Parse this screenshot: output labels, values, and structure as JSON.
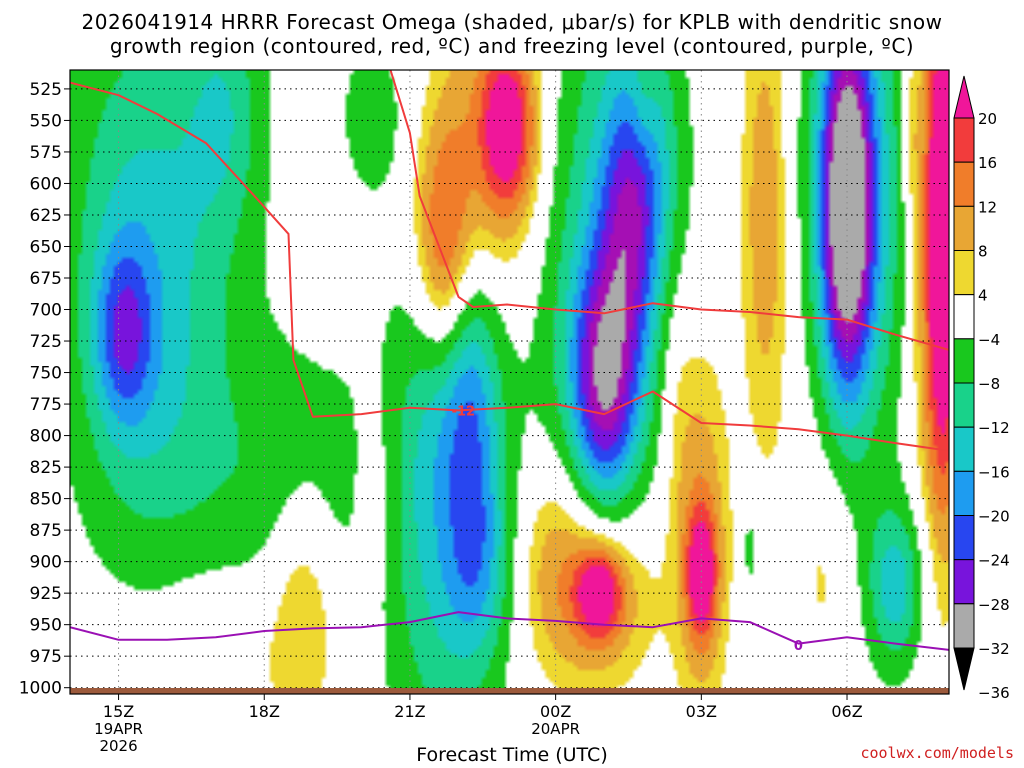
{
  "title_line1": "2026041914 HRRR Forecast Omega (shaded, μbar/s) for KPLB with dendritic snow",
  "title_line2": "growth region (contoured, red, ºC) and freezing level (contoured, purple, ºC)",
  "credit": "coolwx.com/models",
  "chart_data": {
    "type": "heatmap",
    "title": "2026041914 HRRR Forecast Omega (shaded, μbar/s) for KPLB with dendritic snow growth region (contoured, red, ºC) and freezing level (contoured, purple, ºC)",
    "xlabel": "Forecast Time (UTC)",
    "ylabel": "",
    "x_range_hours_utc": [
      14,
      32.1
    ],
    "y_levels_hpa": [
      525,
      550,
      575,
      600,
      625,
      650,
      675,
      700,
      725,
      750,
      775,
      800,
      825,
      850,
      875,
      900,
      925,
      950,
      975,
      1000
    ],
    "ylim_hpa": [
      1005,
      510
    ],
    "x_ticks": [
      {
        "hour": 15,
        "label": "15Z",
        "sub1": "19APR",
        "sub2": "2026"
      },
      {
        "hour": 18,
        "label": "18Z",
        "sub1": "",
        "sub2": ""
      },
      {
        "hour": 21,
        "label": "21Z",
        "sub1": "",
        "sub2": ""
      },
      {
        "hour": 24,
        "label": "00Z",
        "sub1": "20APR",
        "sub2": ""
      },
      {
        "hour": 27,
        "label": "03Z",
        "sub1": "",
        "sub2": ""
      },
      {
        "hour": 30,
        "label": "06Z",
        "sub1": "",
        "sub2": ""
      }
    ],
    "colorbar": {
      "labels": [
        "20",
        "16",
        "12",
        "8",
        "4",
        "−4",
        "−8",
        "−12",
        "−16",
        "−20",
        "−24",
        "−28",
        "−32",
        "−36"
      ],
      "colors": [
        "#f0169a",
        "#f23c3c",
        "#f07d2a",
        "#e8a634",
        "#eed830",
        "#ffffff",
        "#19c81e",
        "#19d28a",
        "#19c8c8",
        "#1e9cf0",
        "#2846f0",
        "#7814dc",
        "#a50fb4",
        "#aaaaaa"
      ]
    },
    "omega_features": [
      {
        "hour": 15.5,
        "hpa": 620,
        "wx": 1.4,
        "wy": 160,
        "value": -11
      },
      {
        "hour": 15.1,
        "hpa": 720,
        "wx": 0.5,
        "wy": 60,
        "value": -14
      },
      {
        "hour": 15.8,
        "hpa": 800,
        "wx": 1.4,
        "wy": 150,
        "value": -7
      },
      {
        "hour": 17.2,
        "hpa": 540,
        "wx": 0.7,
        "wy": 90,
        "value": -9
      },
      {
        "hour": 18.6,
        "hpa": 860,
        "wx": 1.6,
        "wy": 110,
        "value": -8
      },
      {
        "hour": 20.2,
        "hpa": 545,
        "wx": 0.5,
        "wy": 50,
        "value": -7
      },
      {
        "hour": 21.6,
        "hpa": 860,
        "wx": 1.0,
        "wy": 190,
        "value": -12
      },
      {
        "hour": 22.1,
        "hpa": 770,
        "wx": 0.6,
        "wy": 80,
        "value": -15
      },
      {
        "hour": 22.4,
        "hpa": 900,
        "wx": 0.6,
        "wy": 70,
        "value": -12
      },
      {
        "hour": 24.9,
        "hpa": 660,
        "wx": 1.2,
        "wy": 210,
        "value": -12
      },
      {
        "hour": 25.0,
        "hpa": 760,
        "wx": 0.55,
        "wy": 80,
        "value": -23
      },
      {
        "hour": 25.5,
        "hpa": 640,
        "wx": 0.5,
        "wy": 90,
        "value": -14
      },
      {
        "hour": 25.9,
        "hpa": 580,
        "wx": 0.6,
        "wy": 90,
        "value": -9
      },
      {
        "hour": 30.0,
        "hpa": 610,
        "wx": 0.95,
        "wy": 170,
        "value": -20
      },
      {
        "hour": 30.0,
        "hpa": 620,
        "wx": 0.4,
        "wy": 110,
        "value": -29
      },
      {
        "hour": 31.0,
        "hpa": 920,
        "wx": 0.5,
        "wy": 55,
        "value": -14
      },
      {
        "hour": 28.0,
        "hpa": 890,
        "wx": 0.15,
        "wy": 30,
        "value": -6
      },
      {
        "hour": 22.8,
        "hpa": 570,
        "wx": 1.0,
        "wy": 110,
        "value": 10
      },
      {
        "hour": 23.0,
        "hpa": 555,
        "wx": 0.45,
        "wy": 55,
        "value": 18
      },
      {
        "hour": 21.6,
        "hpa": 650,
        "wx": 0.5,
        "wy": 80,
        "value": 11
      },
      {
        "hour": 21.8,
        "hpa": 700,
        "wx": 0.4,
        "wy": 130,
        "value": 7
      },
      {
        "hour": 18.8,
        "hpa": 920,
        "wx": 0.6,
        "wy": 80,
        "value": 8
      },
      {
        "hour": 17.5,
        "hpa": 960,
        "wx": 2.0,
        "wy": 80,
        "value": 5
      },
      {
        "hour": 20.3,
        "hpa": 850,
        "wx": 0.4,
        "wy": 80,
        "value": 5
      },
      {
        "hour": 24.8,
        "hpa": 925,
        "wx": 1.1,
        "wy": 70,
        "value": 12
      },
      {
        "hour": 24.9,
        "hpa": 925,
        "wx": 0.4,
        "wy": 30,
        "value": 18
      },
      {
        "hour": 24.0,
        "hpa": 880,
        "wx": 0.7,
        "wy": 70,
        "value": 5
      },
      {
        "hour": 27.0,
        "hpa": 880,
        "wx": 0.45,
        "wy": 120,
        "value": 10
      },
      {
        "hour": 27.0,
        "hpa": 910,
        "wx": 0.25,
        "wy": 40,
        "value": 18
      },
      {
        "hour": 26.5,
        "hpa": 770,
        "wx": 0.3,
        "wy": 90,
        "value": 4
      },
      {
        "hour": 28.9,
        "hpa": 640,
        "wx": 0.8,
        "wy": 200,
        "value": 6
      },
      {
        "hour": 28.3,
        "hpa": 620,
        "wx": 0.35,
        "wy": 130,
        "value": 7
      },
      {
        "hour": 29.6,
        "hpa": 900,
        "wx": 0.5,
        "wy": 80,
        "value": 4
      },
      {
        "hour": 25.8,
        "hpa": 540,
        "wx": 0.25,
        "wy": 40,
        "value": 5
      },
      {
        "hour": 31.8,
        "hpa": 640,
        "wx": 0.4,
        "wy": 190,
        "value": 14
      },
      {
        "hour": 32.0,
        "hpa": 640,
        "wx": 0.25,
        "wy": 170,
        "value": 20
      },
      {
        "hour": 31.3,
        "hpa": 560,
        "wx": 0.15,
        "wy": 60,
        "value": 5
      }
    ],
    "dgz_minus12_contour": [
      {
        "hour": 14.0,
        "hpa": 520
      },
      {
        "hour": 15.0,
        "hpa": 530
      },
      {
        "hour": 15.8,
        "hpa": 545
      },
      {
        "hour": 16.8,
        "hpa": 568
      },
      {
        "hour": 17.8,
        "hpa": 610
      },
      {
        "hour": 18.5,
        "hpa": 640
      },
      {
        "hour": 18.6,
        "hpa": 740
      },
      {
        "hour": 19.0,
        "hpa": 785
      },
      {
        "hour": 20.0,
        "hpa": 783
      },
      {
        "hour": 21.0,
        "hpa": 778
      },
      {
        "hour": 22.0,
        "hpa": 780
      },
      {
        "hour": 23.0,
        "hpa": 778
      },
      {
        "hour": 24.0,
        "hpa": 775
      },
      {
        "hour": 25.0,
        "hpa": 783
      },
      {
        "hour": 26.0,
        "hpa": 765
      },
      {
        "hour": 27.0,
        "hpa": 790
      },
      {
        "hour": 28.0,
        "hpa": 792
      },
      {
        "hour": 29.0,
        "hpa": 795
      },
      {
        "hour": 30.0,
        "hpa": 800
      },
      {
        "hour": 31.0,
        "hpa": 806
      },
      {
        "hour": 32.1,
        "hpa": 812
      }
    ],
    "dgz_upper_contour": [
      {
        "hour": 20.6,
        "hpa": 510
      },
      {
        "hour": 21.0,
        "hpa": 560
      },
      {
        "hour": 21.2,
        "hpa": 610
      },
      {
        "hour": 21.6,
        "hpa": 650
      },
      {
        "hour": 22.0,
        "hpa": 690
      },
      {
        "hour": 22.3,
        "hpa": 698
      },
      {
        "hour": 23.0,
        "hpa": 696
      },
      {
        "hour": 24.0,
        "hpa": 700
      },
      {
        "hour": 25.0,
        "hpa": 703
      },
      {
        "hour": 26.0,
        "hpa": 695
      },
      {
        "hour": 27.0,
        "hpa": 700
      },
      {
        "hour": 28.0,
        "hpa": 702
      },
      {
        "hour": 29.0,
        "hpa": 706
      },
      {
        "hour": 30.0,
        "hpa": 708
      },
      {
        "hour": 31.0,
        "hpa": 720
      },
      {
        "hour": 32.1,
        "hpa": 732
      }
    ],
    "dgz_label": {
      "text": "-12",
      "hour": 22.1,
      "hpa": 780
    },
    "freezing_level_contour": [
      {
        "hour": 14.0,
        "hpa": 952
      },
      {
        "hour": 15.0,
        "hpa": 962
      },
      {
        "hour": 16.0,
        "hpa": 962
      },
      {
        "hour": 17.0,
        "hpa": 960
      },
      {
        "hour": 18.0,
        "hpa": 955
      },
      {
        "hour": 19.0,
        "hpa": 953
      },
      {
        "hour": 20.0,
        "hpa": 952
      },
      {
        "hour": 21.0,
        "hpa": 948
      },
      {
        "hour": 22.0,
        "hpa": 940
      },
      {
        "hour": 23.0,
        "hpa": 945
      },
      {
        "hour": 24.0,
        "hpa": 947
      },
      {
        "hour": 25.0,
        "hpa": 950
      },
      {
        "hour": 26.0,
        "hpa": 952
      },
      {
        "hour": 27.0,
        "hpa": 945
      },
      {
        "hour": 28.0,
        "hpa": 948
      },
      {
        "hour": 29.0,
        "hpa": 965
      },
      {
        "hour": 30.0,
        "hpa": 960
      },
      {
        "hour": 31.0,
        "hpa": 965
      },
      {
        "hour": 32.1,
        "hpa": 970
      }
    ],
    "freezing_label": {
      "text": "0",
      "hour": 29.0,
      "hpa": 966
    },
    "grid": true,
    "legend": "right"
  }
}
